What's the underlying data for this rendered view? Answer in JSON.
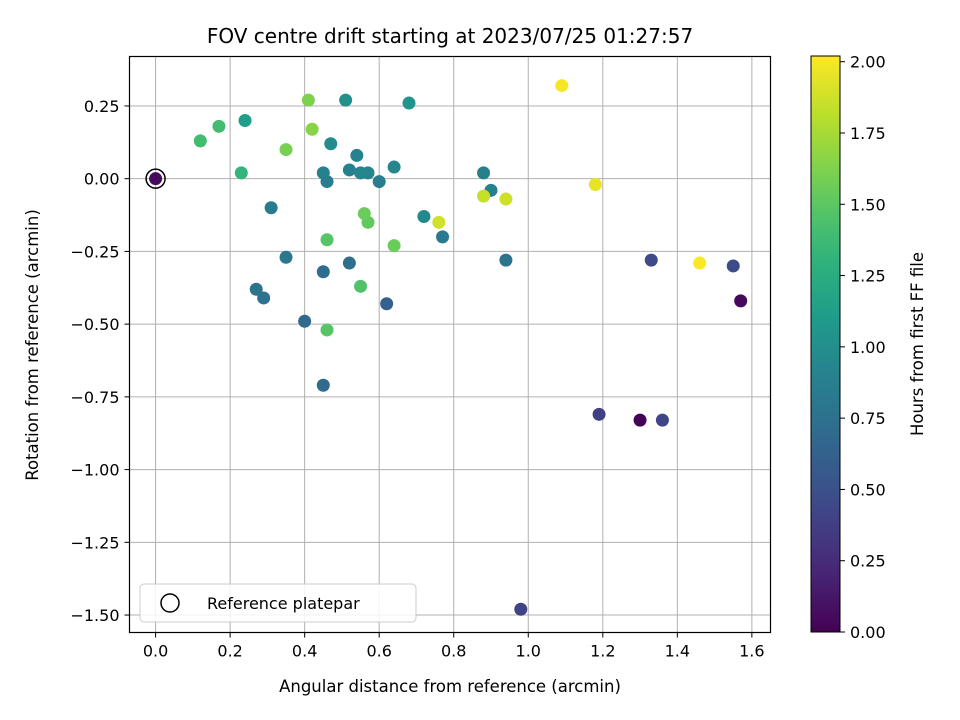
{
  "chart_data": {
    "type": "scatter",
    "title": "FOV centre drift starting at 2023/07/25 01:27:57",
    "xlabel": "Angular distance from reference (arcmin)",
    "ylabel": "Rotation from reference (arcmin)",
    "xlim": [
      -0.07,
      1.65
    ],
    "ylim": [
      -1.56,
      0.42
    ],
    "xticks": [
      0.0,
      0.2,
      0.4,
      0.6,
      0.8,
      1.0,
      1.2,
      1.4,
      1.6
    ],
    "xtick_labels": [
      "0.0",
      "0.2",
      "0.4",
      "0.6",
      "0.8",
      "1.0",
      "1.2",
      "1.4",
      "1.6"
    ],
    "yticks": [
      0.25,
      0.0,
      -0.25,
      -0.5,
      -0.75,
      -1.0,
      -1.25,
      -1.5
    ],
    "ytick_labels": [
      "0.25",
      "0.00",
      "−0.25",
      "−0.50",
      "−0.75",
      "−1.00",
      "−1.25",
      "−1.50"
    ],
    "grid": true,
    "colormap": "viridis",
    "colorbar": {
      "label": "Hours from first FF file",
      "range": [
        0.0,
        2.02
      ],
      "ticks": [
        0.0,
        0.25,
        0.5,
        0.75,
        1.0,
        1.25,
        1.5,
        1.75,
        2.0
      ],
      "tick_labels": [
        "0.00",
        "0.25",
        "0.50",
        "0.75",
        "1.00",
        "1.25",
        "1.50",
        "1.75",
        "2.00"
      ]
    },
    "reference_point": {
      "x": 0.0,
      "y": 0.0,
      "hours": 0.05
    },
    "legend": {
      "entry": "Reference platepar",
      "placement": "lower-left"
    },
    "points": [
      {
        "x": 1.3,
        "y": -0.83,
        "hours": 0.02
      },
      {
        "x": 1.57,
        "y": -0.42,
        "hours": 0.04
      },
      {
        "x": 0.98,
        "y": -1.48,
        "hours": 0.4
      },
      {
        "x": 1.19,
        "y": -0.81,
        "hours": 0.38
      },
      {
        "x": 1.36,
        "y": -0.83,
        "hours": 0.42
      },
      {
        "x": 1.33,
        "y": -0.28,
        "hours": 0.45
      },
      {
        "x": 1.55,
        "y": -0.3,
        "hours": 0.46
      },
      {
        "x": 0.45,
        "y": -0.71,
        "hours": 0.7
      },
      {
        "x": 0.62,
        "y": -0.43,
        "hours": 0.62
      },
      {
        "x": 0.4,
        "y": -0.49,
        "hours": 0.7
      },
      {
        "x": 0.45,
        "y": -0.32,
        "hours": 0.72
      },
      {
        "x": 0.52,
        "y": -0.29,
        "hours": 0.73
      },
      {
        "x": 0.29,
        "y": -0.41,
        "hours": 0.76
      },
      {
        "x": 0.27,
        "y": -0.38,
        "hours": 0.78
      },
      {
        "x": 0.35,
        "y": -0.27,
        "hours": 0.8
      },
      {
        "x": 0.94,
        "y": -0.28,
        "hours": 0.78
      },
      {
        "x": 0.77,
        "y": -0.2,
        "hours": 0.82
      },
      {
        "x": 0.31,
        "y": -0.1,
        "hours": 0.85
      },
      {
        "x": 0.6,
        "y": -0.01,
        "hours": 0.86
      },
      {
        "x": 0.46,
        "y": -0.01,
        "hours": 0.86
      },
      {
        "x": 0.88,
        "y": 0.02,
        "hours": 0.87
      },
      {
        "x": 0.9,
        "y": -0.04,
        "hours": 0.88
      },
      {
        "x": 0.45,
        "y": 0.02,
        "hours": 0.88
      },
      {
        "x": 0.52,
        "y": 0.03,
        "hours": 0.89
      },
      {
        "x": 0.54,
        "y": 0.08,
        "hours": 0.9
      },
      {
        "x": 0.57,
        "y": 0.02,
        "hours": 0.92
      },
      {
        "x": 0.64,
        "y": 0.04,
        "hours": 0.93
      },
      {
        "x": 0.55,
        "y": 0.02,
        "hours": 0.94
      },
      {
        "x": 0.72,
        "y": -0.13,
        "hours": 0.95
      },
      {
        "x": 0.47,
        "y": 0.12,
        "hours": 0.98
      },
      {
        "x": 0.51,
        "y": 0.27,
        "hours": 1.02
      },
      {
        "x": 0.68,
        "y": 0.26,
        "hours": 1.05
      },
      {
        "x": 0.24,
        "y": 0.2,
        "hours": 1.12
      },
      {
        "x": 0.23,
        "y": 0.02,
        "hours": 1.33
      },
      {
        "x": 0.12,
        "y": 0.13,
        "hours": 1.4
      },
      {
        "x": 0.17,
        "y": 0.18,
        "hours": 1.4
      },
      {
        "x": 0.55,
        "y": -0.37,
        "hours": 1.45
      },
      {
        "x": 0.46,
        "y": -0.52,
        "hours": 1.48
      },
      {
        "x": 0.46,
        "y": -0.21,
        "hours": 1.48
      },
      {
        "x": 0.57,
        "y": -0.15,
        "hours": 1.52
      },
      {
        "x": 0.56,
        "y": -0.12,
        "hours": 1.55
      },
      {
        "x": 0.64,
        "y": -0.23,
        "hours": 1.55
      },
      {
        "x": 0.35,
        "y": 0.1,
        "hours": 1.6
      },
      {
        "x": 0.41,
        "y": 0.27,
        "hours": 1.62
      },
      {
        "x": 0.42,
        "y": 0.17,
        "hours": 1.65
      },
      {
        "x": 0.76,
        "y": -0.15,
        "hours": 1.88
      },
      {
        "x": 0.88,
        "y": -0.06,
        "hours": 1.85
      },
      {
        "x": 0.94,
        "y": -0.07,
        "hours": 1.87
      },
      {
        "x": 1.18,
        "y": -0.02,
        "hours": 1.95
      },
      {
        "x": 1.09,
        "y": 0.32,
        "hours": 2.0
      },
      {
        "x": 1.46,
        "y": -0.29,
        "hours": 2.01
      }
    ]
  }
}
